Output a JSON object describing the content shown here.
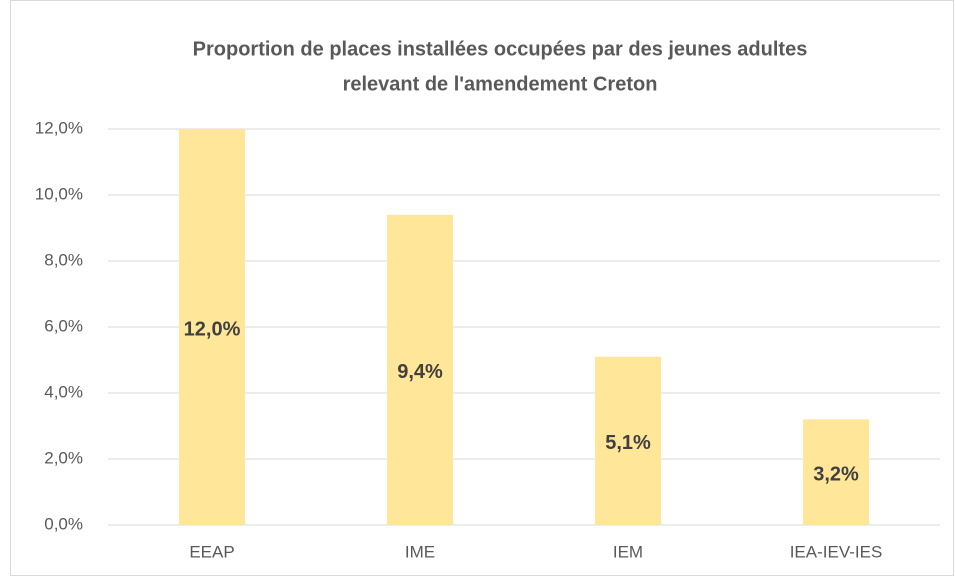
{
  "chart_data": {
    "type": "bar",
    "title": [
      "Proportion de places installées occupées par des jeunes adultes",
      "relevant de l'amendement Creton"
    ],
    "categories": [
      "EEAP",
      "IME",
      "IEM",
      "IEA-IEV-IES"
    ],
    "values": [
      12.0,
      9.4,
      5.1,
      3.2
    ],
    "value_labels": [
      "12,0%",
      "9,4%",
      "5,1%",
      "3,2%"
    ],
    "color": "#ffe699",
    "ylim": [
      0,
      12
    ],
    "yticks": [
      {
        "value": 0,
        "label": "0,0%"
      },
      {
        "value": 2,
        "label": "2,0%"
      },
      {
        "value": 4,
        "label": "4,0%"
      },
      {
        "value": 6,
        "label": "6,0%"
      },
      {
        "value": 8,
        "label": "8,0%"
      },
      {
        "value": 10,
        "label": "10,0%"
      },
      {
        "value": 12,
        "label": "12,0%"
      }
    ],
    "grid": true
  }
}
